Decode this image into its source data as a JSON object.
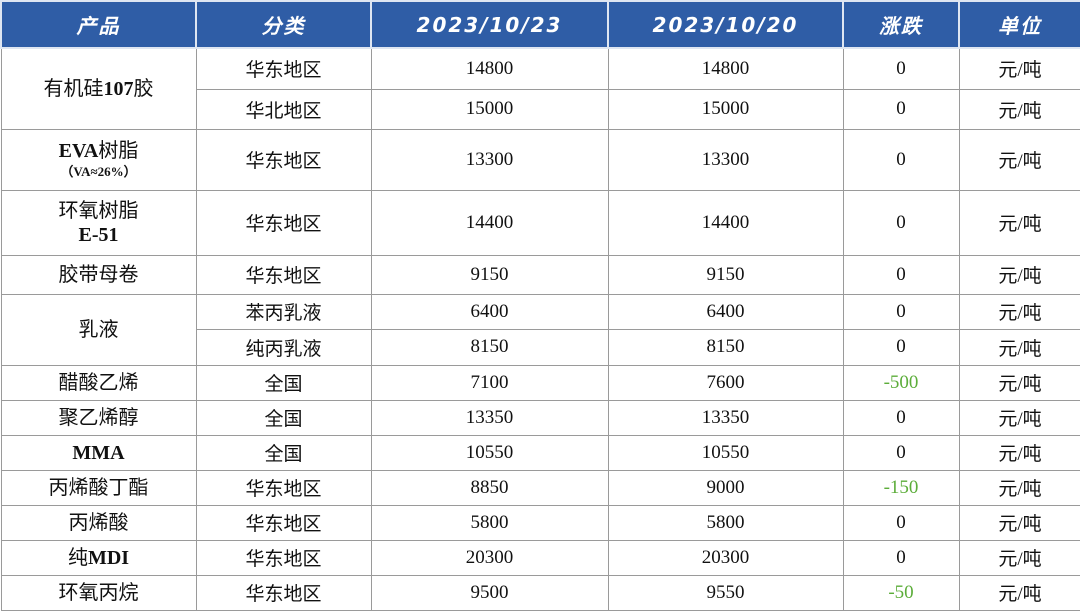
{
  "table": {
    "header": [
      "产品",
      "分类",
      "2023/10/23",
      "2023/10/20",
      "涨跌",
      "单位"
    ],
    "groups": [
      {
        "product": [
          "有机硅107胶"
        ],
        "rows": [
          [
            "华东地区",
            14800,
            14800,
            0,
            "元/吨"
          ],
          [
            "华北地区",
            15000,
            15000,
            0,
            "元/吨"
          ]
        ]
      },
      {
        "product": [
          "EVA树脂",
          "（VA≈26%）"
        ],
        "rows": [
          [
            "华东地区",
            13300,
            13300,
            0,
            "元/吨"
          ]
        ]
      },
      {
        "product": [
          "环氧树脂",
          "E-51"
        ],
        "rows": [
          [
            "华东地区",
            14400,
            14400,
            0,
            "元/吨"
          ]
        ]
      },
      {
        "product": [
          "胶带母卷"
        ],
        "rows": [
          [
            "华东地区",
            9150,
            9150,
            0,
            "元/吨"
          ]
        ]
      },
      {
        "product": [
          "乳液"
        ],
        "rows": [
          [
            "苯丙乳液",
            6400,
            6400,
            0,
            "元/吨"
          ],
          [
            "纯丙乳液",
            8150,
            8150,
            0,
            "元/吨"
          ]
        ]
      },
      {
        "product": [
          "醋酸乙烯"
        ],
        "rows": [
          [
            "全国",
            7100,
            7600,
            -500,
            "元/吨"
          ]
        ]
      },
      {
        "product": [
          "聚乙烯醇"
        ],
        "rows": [
          [
            "全国",
            13350,
            13350,
            0,
            "元/吨"
          ]
        ]
      },
      {
        "product": [
          "MMA"
        ],
        "rows": [
          [
            "全国",
            10550,
            10550,
            0,
            "元/吨"
          ]
        ]
      },
      {
        "product": [
          "丙烯酸丁酯"
        ],
        "rows": [
          [
            "华东地区",
            8850,
            9000,
            -150,
            "元/吨"
          ]
        ]
      },
      {
        "product": [
          "丙烯酸"
        ],
        "rows": [
          [
            "华东地区",
            5800,
            5800,
            0,
            "元/吨"
          ]
        ]
      },
      {
        "product": [
          "纯MDI"
        ],
        "rows": [
          [
            "华东地区",
            20300,
            20300,
            0,
            "元/吨"
          ]
        ]
      },
      {
        "product": [
          "环氧丙烷"
        ],
        "rows": [
          [
            "华东地区",
            9500,
            9550,
            -50,
            "元/吨"
          ]
        ]
      }
    ]
  }
}
